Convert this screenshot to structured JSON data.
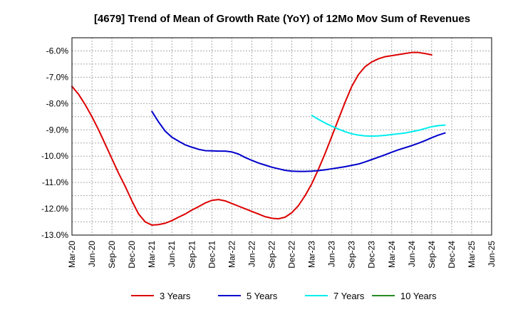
{
  "chart_data": {
    "type": "line",
    "title": "[4679]  Trend of Mean of Growth Rate (YoY) of 12Mo Mov Sum of Revenues",
    "xlabel": "",
    "ylabel": "",
    "ylim": [
      -13.0,
      -5.5
    ],
    "yticks": [
      -6.0,
      -7.0,
      -8.0,
      -9.0,
      -10.0,
      -11.0,
      -12.0,
      -13.0
    ],
    "ytick_labels": [
      "-6.0%",
      "-7.0%",
      "-8.0%",
      "-9.0%",
      "-10.0%",
      "-11.0%",
      "-12.0%",
      "-13.0%"
    ],
    "xtick_labels": [
      "Mar-20",
      "Jun-20",
      "Sep-20",
      "Dec-20",
      "Mar-21",
      "Jun-21",
      "Sep-21",
      "Dec-21",
      "Mar-22",
      "Jun-22",
      "Sep-22",
      "Dec-22",
      "Mar-23",
      "Jun-23",
      "Sep-23",
      "Dec-23",
      "Mar-24",
      "Jun-24",
      "Sep-24",
      "Dec-24",
      "Mar-25",
      "Jun-25"
    ],
    "grid": true,
    "legend_position": "bottom",
    "series": [
      {
        "name": "3 Years",
        "color": "#dd0000",
        "start_index": 0,
        "values": [
          -7.35,
          -7.65,
          -8.05,
          -8.5,
          -9.0,
          -9.55,
          -10.1,
          -10.65,
          -11.15,
          -11.7,
          -12.2,
          -12.5,
          -12.62,
          -12.6,
          -12.55,
          -12.45,
          -12.32,
          -12.2,
          -12.05,
          -11.92,
          -11.78,
          -11.68,
          -11.65,
          -11.7,
          -11.8,
          -11.9,
          -12.0,
          -12.1,
          -12.2,
          -12.3,
          -12.36,
          -12.38,
          -12.32,
          -12.15,
          -11.88,
          -11.5,
          -11.05,
          -10.5,
          -9.9,
          -9.25,
          -8.6,
          -7.95,
          -7.35,
          -6.9,
          -6.6,
          -6.42,
          -6.3,
          -6.22,
          -6.18,
          -6.14,
          -6.1,
          -6.06,
          -6.06,
          -6.1,
          -6.15
        ]
      },
      {
        "name": "5 Years",
        "color": "#0000cc",
        "start_index": 12,
        "values": [
          -8.3,
          -8.7,
          -9.05,
          -9.28,
          -9.43,
          -9.57,
          -9.66,
          -9.74,
          -9.79,
          -9.8,
          -9.81,
          -9.81,
          -9.84,
          -9.92,
          -10.05,
          -10.16,
          -10.26,
          -10.34,
          -10.42,
          -10.48,
          -10.54,
          -10.57,
          -10.58,
          -10.58,
          -10.57,
          -10.55,
          -10.52,
          -10.48,
          -10.44,
          -10.4,
          -10.35,
          -10.3,
          -10.22,
          -10.13,
          -10.04,
          -9.95,
          -9.85,
          -9.76,
          -9.68,
          -9.6,
          -9.51,
          -9.41,
          -9.3,
          -9.2,
          -9.12
        ]
      },
      {
        "name": "7 Years",
        "color": "#00eeee",
        "start_index": 36,
        "values": [
          -8.45,
          -8.6,
          -8.74,
          -8.86,
          -8.97,
          -9.07,
          -9.15,
          -9.2,
          -9.23,
          -9.24,
          -9.23,
          -9.21,
          -9.18,
          -9.15,
          -9.12,
          -9.07,
          -9.02,
          -8.95,
          -8.88,
          -8.84,
          -8.82
        ]
      },
      {
        "name": "10 Years",
        "color": "#228b22",
        "start_index": 0,
        "values": []
      }
    ]
  }
}
